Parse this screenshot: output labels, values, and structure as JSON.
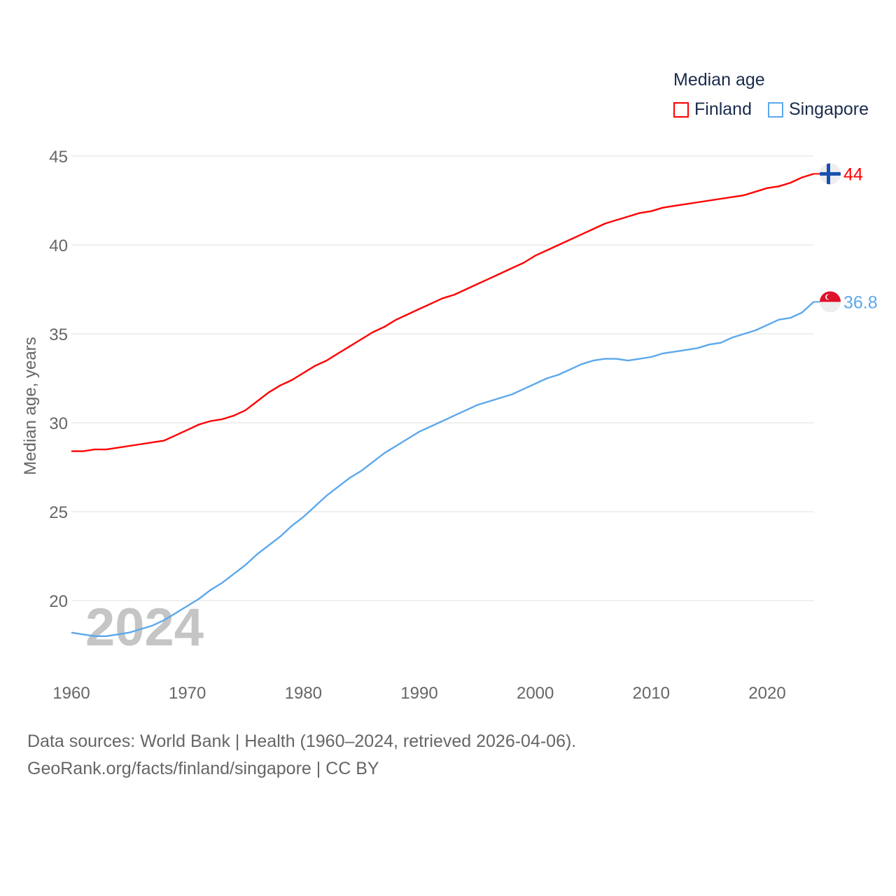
{
  "chart_data": {
    "type": "line",
    "title": "Median age",
    "xlabel": "",
    "ylabel": "Median age, years",
    "xlim": [
      1960,
      2024
    ],
    "ylim": [
      16.5,
      46
    ],
    "xticks": [
      1960,
      1970,
      1980,
      1990,
      2000,
      2010,
      2020
    ],
    "yticks": [
      20,
      25,
      30,
      35,
      40,
      45
    ],
    "grid": true,
    "legend_position": "top-right",
    "year_watermark": "2024",
    "x": [
      1960,
      1961,
      1962,
      1963,
      1964,
      1965,
      1966,
      1967,
      1968,
      1969,
      1970,
      1971,
      1972,
      1973,
      1974,
      1975,
      1976,
      1977,
      1978,
      1979,
      1980,
      1981,
      1982,
      1983,
      1984,
      1985,
      1986,
      1987,
      1988,
      1989,
      1990,
      1991,
      1992,
      1993,
      1994,
      1995,
      1996,
      1997,
      1998,
      1999,
      2000,
      2001,
      2002,
      2003,
      2004,
      2005,
      2006,
      2007,
      2008,
      2009,
      2010,
      2011,
      2012,
      2013,
      2014,
      2015,
      2016,
      2017,
      2018,
      2019,
      2020,
      2021,
      2022,
      2023,
      2024
    ],
    "series": [
      {
        "name": "Finland",
        "color": "#ff0000",
        "end_label": "44",
        "flag": "finland",
        "values": [
          28.4,
          28.4,
          28.5,
          28.5,
          28.6,
          28.7,
          28.8,
          28.9,
          29.0,
          29.3,
          29.6,
          29.9,
          30.1,
          30.2,
          30.4,
          30.7,
          31.2,
          31.7,
          32.1,
          32.4,
          32.8,
          33.2,
          33.5,
          33.9,
          34.3,
          34.7,
          35.1,
          35.4,
          35.8,
          36.1,
          36.4,
          36.7,
          37.0,
          37.2,
          37.5,
          37.8,
          38.1,
          38.4,
          38.7,
          39.0,
          39.4,
          39.7,
          40.0,
          40.3,
          40.6,
          40.9,
          41.2,
          41.4,
          41.6,
          41.8,
          41.9,
          42.1,
          42.2,
          42.3,
          42.4,
          42.5,
          42.6,
          42.7,
          42.8,
          43.0,
          43.2,
          43.3,
          43.5,
          43.8,
          44.0
        ]
      },
      {
        "name": "Singapore",
        "color": "#5ca8ec",
        "end_label": "36.8",
        "flag": "singapore",
        "values": [
          18.2,
          18.1,
          18.0,
          18.0,
          18.1,
          18.2,
          18.4,
          18.6,
          18.9,
          19.3,
          19.7,
          20.1,
          20.6,
          21.0,
          21.5,
          22.0,
          22.6,
          23.1,
          23.6,
          24.2,
          24.7,
          25.3,
          25.9,
          26.4,
          26.9,
          27.3,
          27.8,
          28.3,
          28.7,
          29.1,
          29.5,
          29.8,
          30.1,
          30.4,
          30.7,
          31.0,
          31.2,
          31.4,
          31.6,
          31.9,
          32.2,
          32.5,
          32.7,
          33.0,
          33.3,
          33.5,
          33.6,
          33.6,
          33.5,
          33.6,
          33.7,
          33.9,
          34.0,
          34.1,
          34.2,
          34.4,
          34.5,
          34.8,
          35.0,
          35.2,
          35.5,
          35.8,
          35.9,
          36.2,
          36.8
        ]
      }
    ]
  },
  "footer": {
    "line1": "Data sources: World Bank | Health (1960–2024, retrieved 2026-04-06).",
    "line2": "GeoRank.org/facts/finland/singapore | CC BY"
  }
}
